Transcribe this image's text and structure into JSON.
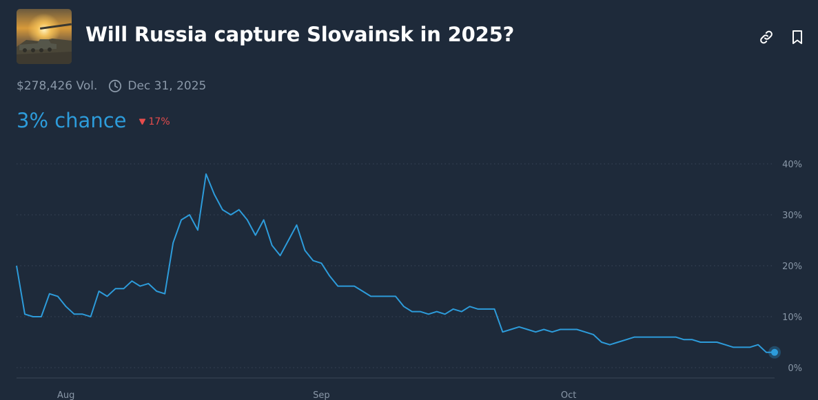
{
  "market": {
    "title": "Will Russia capture Slovainsk in 2025?",
    "volume": "$278,426 Vol.",
    "end_date": "Dec 31, 2025",
    "chance": "3% chance",
    "change": "17%",
    "change_direction": "down"
  },
  "icons": {
    "link": "link-icon",
    "bookmark": "bookmark-icon",
    "clock": "clock-icon",
    "change_arrow": "triangle-down-icon"
  },
  "colors": {
    "background": "#1e2a3a",
    "line": "#2d9cdb",
    "down": "#e64c4c",
    "muted": "#8a98a8"
  },
  "chart_data": {
    "type": "line",
    "title": "",
    "xlabel": "",
    "ylabel": "",
    "ylim": [
      0,
      40
    ],
    "yticks": [
      0,
      10,
      20,
      30,
      40
    ],
    "ytick_labels": [
      "0%",
      "10%",
      "20%",
      "30%",
      "40%"
    ],
    "xlim": [
      "2025-07-26",
      "2025-10-26"
    ],
    "xticks": [
      "2025-08-01",
      "2025-09-01",
      "2025-10-01"
    ],
    "xtick_labels": [
      "Aug",
      "Sep",
      "Oct"
    ],
    "grid": true,
    "series": [
      {
        "x": [
          "2025-07-26",
          "2025-07-27",
          "2025-07-28",
          "2025-07-29",
          "2025-07-30",
          "2025-07-31",
          "2025-08-01",
          "2025-08-02",
          "2025-08-03",
          "2025-08-04",
          "2025-08-05",
          "2025-08-06",
          "2025-08-07",
          "2025-08-08",
          "2025-08-09",
          "2025-08-10",
          "2025-08-11",
          "2025-08-12",
          "2025-08-13",
          "2025-08-14",
          "2025-08-15",
          "2025-08-16",
          "2025-08-17",
          "2025-08-18",
          "2025-08-19",
          "2025-08-20",
          "2025-08-21",
          "2025-08-22",
          "2025-08-23",
          "2025-08-24",
          "2025-08-25",
          "2025-08-26",
          "2025-08-27",
          "2025-08-28",
          "2025-08-29",
          "2025-08-30",
          "2025-08-31",
          "2025-09-01",
          "2025-09-02",
          "2025-09-03",
          "2025-09-04",
          "2025-09-05",
          "2025-09-06",
          "2025-09-07",
          "2025-09-08",
          "2025-09-09",
          "2025-09-10",
          "2025-09-11",
          "2025-09-12",
          "2025-09-13",
          "2025-09-14",
          "2025-09-15",
          "2025-09-16",
          "2025-09-17",
          "2025-09-18",
          "2025-09-19",
          "2025-09-20",
          "2025-09-21",
          "2025-09-22",
          "2025-09-23",
          "2025-09-24",
          "2025-09-25",
          "2025-09-26",
          "2025-09-27",
          "2025-09-28",
          "2025-09-29",
          "2025-09-30",
          "2025-10-01",
          "2025-10-02",
          "2025-10-03",
          "2025-10-04",
          "2025-10-05",
          "2025-10-06",
          "2025-10-07",
          "2025-10-08",
          "2025-10-09",
          "2025-10-10",
          "2025-10-11",
          "2025-10-12",
          "2025-10-13",
          "2025-10-14",
          "2025-10-15",
          "2025-10-16",
          "2025-10-17",
          "2025-10-18",
          "2025-10-19",
          "2025-10-20",
          "2025-10-21",
          "2025-10-22",
          "2025-10-23",
          "2025-10-24",
          "2025-10-25",
          "2025-10-26"
        ],
        "values": [
          20,
          10.5,
          10,
          10,
          14.5,
          14,
          12,
          10.5,
          10.5,
          10,
          15,
          14,
          15.5,
          15.5,
          17,
          16,
          16.5,
          15,
          14.5,
          24.5,
          29,
          30,
          27,
          38,
          34,
          31,
          30,
          31,
          29,
          26,
          29,
          24,
          22,
          25,
          28,
          23,
          21,
          20.5,
          18,
          16,
          16,
          16,
          15,
          14,
          14,
          14,
          14,
          12,
          11,
          11,
          10.5,
          11,
          10.5,
          11.5,
          11,
          12,
          11.5,
          11.5,
          11.5,
          7,
          7.5,
          8,
          7.5,
          7,
          7.5,
          7,
          7.5,
          7.5,
          7.5,
          7,
          6.5,
          5,
          4.5,
          5,
          5.5,
          6,
          6,
          6,
          6,
          6,
          6,
          5.5,
          5.5,
          5,
          5,
          5,
          4.5,
          4,
          4,
          4,
          4.5,
          3,
          3
        ]
      }
    ],
    "last_point_value": 3
  }
}
